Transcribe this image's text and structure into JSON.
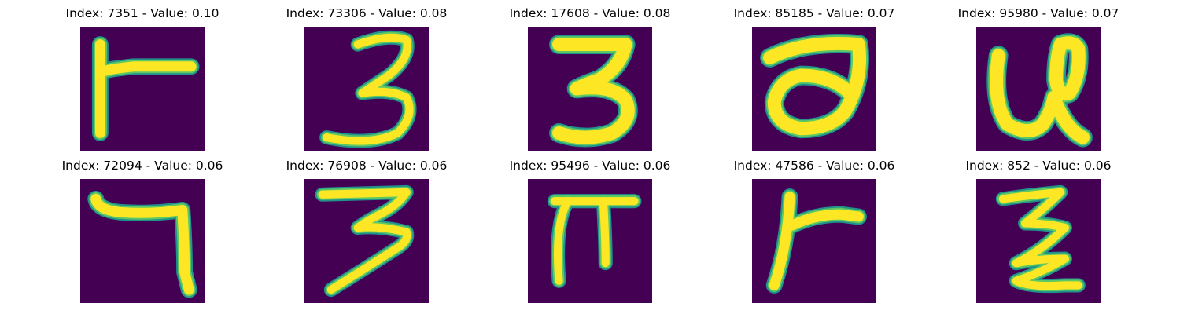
{
  "colors": {
    "background": "#440154",
    "stroke_core": "#fde725",
    "stroke_mid": "#5ec962",
    "stroke_edge": "#21918c"
  },
  "panels": [
    {
      "title": "Index: 7351 - Value: 0.10"
    },
    {
      "title": "Index: 73306 - Value: 0.08"
    },
    {
      "title": "Index: 17608 - Value: 0.08"
    },
    {
      "title": "Index: 85185 - Value: 0.07"
    },
    {
      "title": "Index: 95980 - Value: 0.07"
    },
    {
      "title": "Index: 72094 - Value: 0.06"
    },
    {
      "title": "Index: 76908 - Value: 0.06"
    },
    {
      "title": "Index: 95496 - Value: 0.06"
    },
    {
      "title": "Index: 47586 - Value: 0.06"
    },
    {
      "title": "Index: 852 - Value: 0.06"
    }
  ]
}
